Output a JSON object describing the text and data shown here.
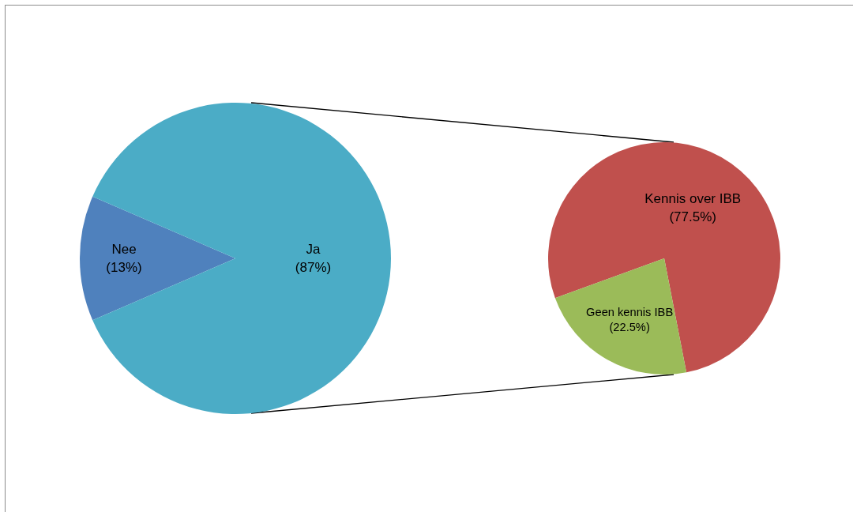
{
  "chart_data": [
    {
      "type": "pie",
      "categories": [
        "Nee",
        "Ja"
      ],
      "values": [
        13,
        87
      ],
      "colors": [
        "#4f81bd",
        "#4bacc6"
      ],
      "value_labels": [
        "(13%)",
        "(87%)"
      ]
    },
    {
      "type": "pie",
      "categories": [
        "Kennis over IBB",
        "Geen kennis IBB"
      ],
      "values": [
        77.5,
        22.5
      ],
      "colors": [
        "#c0504d",
        "#9bbb59"
      ],
      "value_labels": [
        "(77.5%)",
        "(22.5%)"
      ]
    }
  ]
}
